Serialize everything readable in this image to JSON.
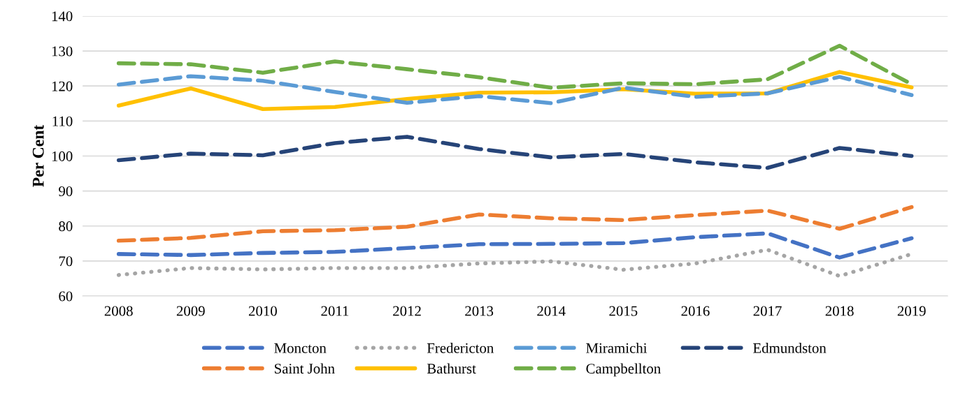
{
  "chart_data": {
    "type": "line",
    "ylabel": "Per Cent",
    "categories": [
      "2008",
      "2009",
      "2010",
      "2011",
      "2012",
      "2013",
      "2014",
      "2015",
      "2016",
      "2017",
      "2018",
      "2019"
    ],
    "series": [
      {
        "name": "Moncton",
        "color": "#4472c4",
        "line_style": "dashed",
        "values": [
          72,
          71.7,
          72.3,
          72.6,
          73.7,
          74.8,
          74.9,
          75.1,
          76.8,
          77.9,
          71,
          76.5
        ]
      },
      {
        "name": "Saint John",
        "color": "#ed7d31",
        "line_style": "dashed",
        "values": [
          75.8,
          76.6,
          78.5,
          78.8,
          79.8,
          83.3,
          82.2,
          81.7,
          83.1,
          84.4,
          79.2,
          85.4
        ]
      },
      {
        "name": "Fredericton",
        "color": "#a5a5a5",
        "line_style": "dotted",
        "values": [
          66,
          68,
          67.6,
          68,
          68,
          69.3,
          69.9,
          67.5,
          69.3,
          73.2,
          65.7,
          72
        ]
      },
      {
        "name": "Bathurst",
        "color": "#ffc000",
        "line_style": "solid",
        "values": [
          114.4,
          119.3,
          113.4,
          114,
          116.3,
          118.1,
          118.2,
          119.1,
          117.8,
          117.9,
          124,
          119.6
        ]
      },
      {
        "name": "Miramichi",
        "color": "#5b9bd5",
        "line_style": "dashed",
        "values": [
          120.4,
          122.8,
          121.5,
          118.3,
          115.2,
          117.1,
          115.1,
          119.5,
          116.9,
          117.9,
          122.6,
          117.4
        ]
      },
      {
        "name": "Campbellton",
        "color": "#70ad47",
        "line_style": "dashed",
        "values": [
          126.5,
          126.2,
          123.8,
          127,
          124.8,
          122.5,
          119.5,
          120.8,
          120.5,
          121.9,
          131.5,
          120.5
        ]
      },
      {
        "name": "Edmundston",
        "color": "#264478",
        "line_style": "dashed",
        "values": [
          98.8,
          100.7,
          100.2,
          103.7,
          105.5,
          102,
          99.6,
          100.6,
          98.2,
          96.6,
          102.3,
          100
        ]
      }
    ],
    "ylim": [
      60,
      140
    ],
    "yticks": [
      60,
      70,
      80,
      90,
      100,
      110,
      120,
      130,
      140
    ],
    "grid": "y",
    "legend": "bottom",
    "marker": "none"
  }
}
